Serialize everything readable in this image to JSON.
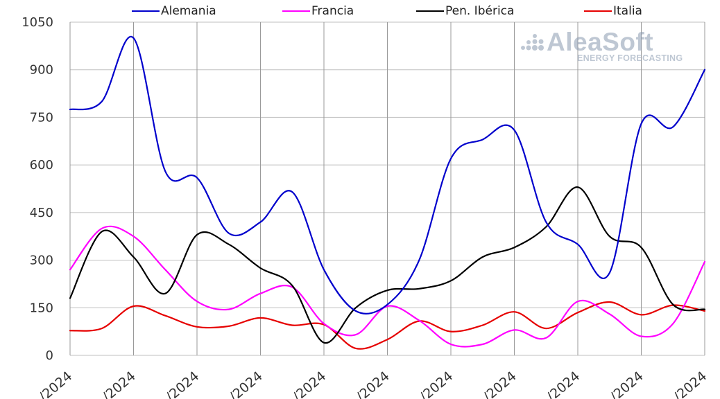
{
  "legend": [
    {
      "name": "Alemania",
      "color": "#0000cc"
    },
    {
      "name": "Francia",
      "color": "#ff00ff"
    },
    {
      "name": "Pen. Ibérica",
      "color": "#000000"
    },
    {
      "name": "Italia",
      "color": "#e60000"
    }
  ],
  "watermark": {
    "brand": "AleaSoft",
    "tagline": "ENERGY FORECASTING"
  },
  "chart_data": {
    "type": "line",
    "title": "",
    "xlabel": "",
    "ylabel": "",
    "ylim": [
      0,
      1050
    ],
    "yticks": [
      0,
      150,
      300,
      450,
      600,
      750,
      900,
      1050
    ],
    "x_tick_labels": [
      "/2024",
      "/2024",
      "/2024",
      "/2024",
      "/2024",
      "/2024",
      "/2024",
      "/2024",
      "/2024",
      "/2024",
      "/2024"
    ],
    "grid": true,
    "legend_position": "top",
    "series": [
      {
        "name": "Alemania",
        "color": "#0000cc",
        "values": [
          775,
          800,
          1000,
          580,
          560,
          385,
          420,
          515,
          270,
          140,
          160,
          300,
          620,
          680,
          710,
          420,
          350,
          260,
          730,
          720,
          900
        ]
      },
      {
        "name": "Francia",
        "color": "#ff00ff",
        "values": [
          270,
          400,
          375,
          270,
          170,
          145,
          195,
          215,
          100,
          65,
          155,
          110,
          35,
          35,
          80,
          55,
          170,
          130,
          60,
          100,
          295
        ]
      },
      {
        "name": "Pen. Ibérica",
        "color": "#000000",
        "values": [
          180,
          390,
          310,
          195,
          380,
          350,
          275,
          220,
          40,
          150,
          205,
          210,
          235,
          310,
          340,
          405,
          530,
          375,
          340,
          160,
          145
        ]
      },
      {
        "name": "Italia",
        "color": "#e60000",
        "values": [
          78,
          85,
          155,
          125,
          90,
          92,
          118,
          95,
          97,
          22,
          50,
          108,
          75,
          95,
          137,
          85,
          135,
          168,
          128,
          158,
          140
        ]
      }
    ]
  }
}
